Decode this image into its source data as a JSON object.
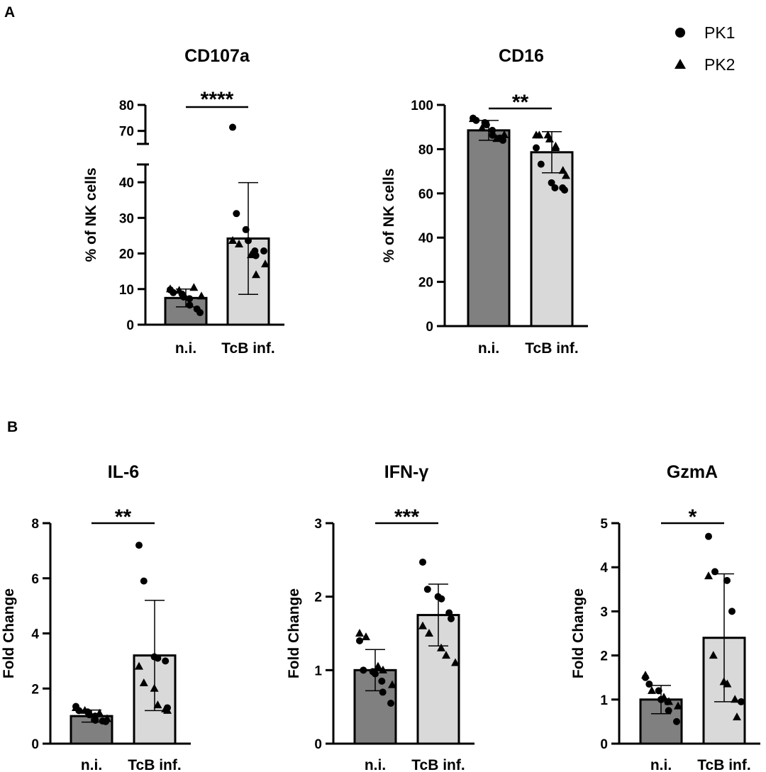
{
  "figure": {
    "panel_a_label": "A",
    "panel_b_label": "B"
  },
  "legend": {
    "items": [
      {
        "name": "PK1",
        "marker": "circle"
      },
      {
        "name": "PK2",
        "marker": "triangle"
      }
    ]
  },
  "colors": {
    "ni_bar": "#808080",
    "tcb_bar": "#d9d9d9",
    "ink": "#000000"
  },
  "chart_data": [
    {
      "type": "bar",
      "title": "CD107a",
      "ylabel": "% of NK cells",
      "xlabel": "",
      "categories": [
        "n.i.",
        "TcB inf."
      ],
      "values": [
        7.5,
        24.2
      ],
      "error_sd": [
        2.5,
        15.7
      ],
      "ylim": [
        0,
        80
      ],
      "axis_break": [
        45,
        65
      ],
      "yticks": [
        0,
        10,
        20,
        30,
        40,
        70,
        80
      ],
      "significance": "****",
      "points": [
        {
          "category": "n.i.",
          "series": "PK1",
          "values": [
            9.8,
            9.0,
            8.6,
            7.8,
            7.3,
            5.5,
            4.4,
            3.4
          ]
        },
        {
          "category": "n.i.",
          "series": "PK2",
          "values": [
            10.0,
            9.6,
            10.4,
            8.0
          ]
        },
        {
          "category": "TcB inf.",
          "series": "PK1",
          "values": [
            71.4,
            31.2,
            26.7,
            23.6,
            20.7,
            19.4,
            20.7
          ]
        },
        {
          "category": "TcB inf.",
          "series": "PK2",
          "values": [
            23.6,
            22.6,
            19.6,
            14.0,
            17.0
          ]
        }
      ]
    },
    {
      "type": "bar",
      "title": "CD16",
      "ylabel": "% of NK cells",
      "xlabel": "",
      "categories": [
        "n.i.",
        "TcB inf."
      ],
      "values": [
        88.5,
        78.6
      ],
      "error_sd": [
        4.5,
        9.3
      ],
      "ylim": [
        0,
        100
      ],
      "yticks": [
        0,
        20,
        40,
        60,
        80,
        100
      ],
      "significance": "**",
      "points": [
        {
          "category": "n.i.",
          "series": "PK1",
          "values": [
            94.0,
            93.0,
            92.0,
            91.0,
            88.5,
            86.3,
            85.0,
            84.0
          ]
        },
        {
          "category": "n.i.",
          "series": "PK2",
          "values": [
            93.7,
            89.5,
            84.7,
            86.4
          ]
        },
        {
          "category": "TcB inf.",
          "series": "PK1",
          "values": [
            80.6,
            73.2,
            64.8,
            62.5,
            62.5,
            61.5
          ]
        },
        {
          "category": "TcB inf.",
          "series": "PK2",
          "values": [
            86.3,
            86.3,
            86.3,
            84.5,
            80.6,
            81.3,
            70.3,
            68.0
          ]
        }
      ]
    },
    {
      "type": "bar",
      "title": "IL-6",
      "ylabel": "Fold Change",
      "xlabel": "",
      "categories": [
        "n.i.",
        "TcB inf."
      ],
      "values": [
        1.0,
        3.2
      ],
      "error_sd": [
        0.22,
        2.0
      ],
      "ylim": [
        0,
        8
      ],
      "yticks": [
        0,
        2,
        4,
        6,
        8
      ],
      "significance": "**",
      "points": [
        {
          "category": "n.i.",
          "series": "PK1",
          "values": [
            1.35,
            1.2,
            1.15,
            1.05,
            1.0,
            0.85,
            0.82,
            0.8
          ]
        },
        {
          "category": "n.i.",
          "series": "PK2",
          "values": [
            1.3,
            1.2,
            1.1,
            0.9
          ]
        },
        {
          "category": "TcB inf.",
          "series": "PK1",
          "values": [
            7.2,
            5.9,
            3.15,
            3.1,
            3.0,
            1.3
          ]
        },
        {
          "category": "TcB inf.",
          "series": "PK2",
          "values": [
            2.8,
            2.2,
            2.0,
            1.4,
            1.25,
            1.2
          ]
        }
      ]
    },
    {
      "type": "bar",
      "title": "IFN-γ",
      "ylabel": "Fold Change",
      "xlabel": "",
      "categories": [
        "n.i.",
        "TcB inf."
      ],
      "values": [
        1.0,
        1.75
      ],
      "error_sd": [
        0.28,
        0.42
      ],
      "ylim": [
        0,
        3
      ],
      "yticks": [
        0,
        1,
        2,
        3
      ],
      "significance": "***",
      "points": [
        {
          "category": "n.i.",
          "series": "PK1",
          "values": [
            1.4,
            1.0,
            0.98,
            0.95,
            0.85,
            0.7,
            0.55
          ]
        },
        {
          "category": "n.i.",
          "series": "PK2",
          "values": [
            1.5,
            1.45,
            1.05,
            1.0,
            0.8
          ]
        },
        {
          "category": "TcB inf.",
          "series": "PK1",
          "values": [
            2.47,
            2.1,
            2.0,
            1.97,
            1.78,
            1.7
          ]
        },
        {
          "category": "TcB inf.",
          "series": "PK2",
          "values": [
            1.6,
            1.5,
            1.3,
            1.2,
            1.1
          ]
        }
      ]
    },
    {
      "type": "bar",
      "title": "GzmA",
      "ylabel": "Fold Change",
      "xlabel": "",
      "categories": [
        "n.i.",
        "TcB inf."
      ],
      "values": [
        1.0,
        2.4
      ],
      "error_sd": [
        0.32,
        1.45
      ],
      "ylim": [
        0,
        5
      ],
      "yticks": [
        0,
        1,
        2,
        3,
        4,
        5
      ],
      "significance": "*",
      "points": [
        {
          "category": "n.i.",
          "series": "PK1",
          "values": [
            1.5,
            1.35,
            1.2,
            1.0,
            0.95,
            0.75,
            0.5
          ]
        },
        {
          "category": "n.i.",
          "series": "PK2",
          "values": [
            1.55,
            1.2,
            1.05,
            0.95,
            0.85
          ]
        },
        {
          "category": "TcB inf.",
          "series": "PK1",
          "values": [
            4.7,
            3.9,
            3.7,
            3.0,
            0.95
          ]
        },
        {
          "category": "TcB inf.",
          "series": "PK2",
          "values": [
            3.8,
            2.0,
            1.4,
            1.35,
            1.0,
            0.6
          ]
        }
      ]
    }
  ]
}
